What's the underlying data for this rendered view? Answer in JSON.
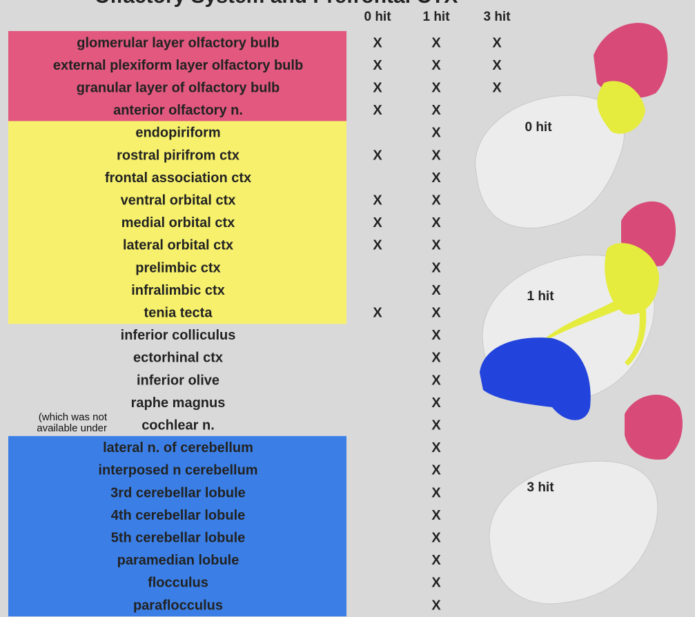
{
  "title": "Olfactory System and Prefrontal CTX",
  "columns": [
    "0 hit",
    "1 hit",
    "3 hit"
  ],
  "rows": [
    {
      "label": "glomerular layer olfactory bulb",
      "cells": [
        "X",
        "X",
        "X"
      ],
      "highlight": "#e2587f"
    },
    {
      "label": "external plexiform layer olfactory bulb",
      "cells": [
        "X",
        "X",
        "X"
      ],
      "highlight": "#e2587f"
    },
    {
      "label": "granular layer of olfactory bulb",
      "cells": [
        "X",
        "X",
        "X"
      ],
      "highlight": "#e2587f"
    },
    {
      "label": "anterior olfactory n.",
      "cells": [
        "X",
        "X",
        null
      ],
      "highlight": "#e2587f"
    },
    {
      "label": "endopiriform",
      "cells": [
        null,
        "X",
        null
      ],
      "highlight": "#f6f06c"
    },
    {
      "label": "rostral pirifrom ctx",
      "cells": [
        "X",
        "X",
        null
      ],
      "highlight": "#f6f06c"
    },
    {
      "label": "frontal association ctx",
      "cells": [
        null,
        "X",
        null
      ],
      "highlight": "#f6f06c"
    },
    {
      "label": "ventral orbital ctx",
      "cells": [
        "X",
        "X",
        null
      ],
      "highlight": "#f6f06c"
    },
    {
      "label": "medial orbital ctx",
      "cells": [
        "X",
        "X",
        null
      ],
      "highlight": "#f6f06c"
    },
    {
      "label": "lateral orbital ctx",
      "cells": [
        "X",
        "X",
        null
      ],
      "highlight": "#f6f06c"
    },
    {
      "label": "prelimbic ctx",
      "cells": [
        null,
        "X",
        null
      ],
      "highlight": "#f6f06c"
    },
    {
      "label": "infralimbic ctx",
      "cells": [
        null,
        "X",
        null
      ],
      "highlight": "#f6f06c"
    },
    {
      "label": "tenia tecta",
      "cells": [
        "X",
        "X",
        null
      ],
      "highlight": "#f6f06c"
    },
    {
      "label": "inferior colliculus",
      "cells": [
        null,
        "X",
        null
      ],
      "highlight": null
    },
    {
      "label": "ectorhinal ctx",
      "cells": [
        null,
        "X",
        null
      ],
      "highlight": null
    },
    {
      "label": "inferior olive",
      "cells": [
        null,
        "X",
        null
      ],
      "highlight": null
    },
    {
      "label": "raphe magnus",
      "cells": [
        null,
        "X",
        null
      ],
      "highlight": null
    },
    {
      "label": "cochlear n.",
      "cells": [
        null,
        "X",
        null
      ],
      "highlight": null
    },
    {
      "label": "lateral n. of cerebellum",
      "cells": [
        null,
        "X",
        null
      ],
      "highlight": "#3b7fe6"
    },
    {
      "label": "interposed n cerebellum",
      "cells": [
        null,
        "X",
        null
      ],
      "highlight": "#3b7fe6"
    },
    {
      "label": "3rd cerebellar lobule",
      "cells": [
        null,
        "X",
        null
      ],
      "highlight": "#3b7fe6"
    },
    {
      "label": "4th cerebellar lobule",
      "cells": [
        null,
        "X",
        null
      ],
      "highlight": "#3b7fe6"
    },
    {
      "label": "5th cerebellar lobule",
      "cells": [
        null,
        "X",
        null
      ],
      "highlight": "#3b7fe6"
    },
    {
      "label": "paramedian lobule",
      "cells": [
        null,
        "X",
        null
      ],
      "highlight": "#3b7fe6"
    },
    {
      "label": "flocculus",
      "cells": [
        null,
        "X",
        null
      ],
      "highlight": "#3b7fe6"
    },
    {
      "label": "paraflocculus",
      "cells": [
        null,
        "X",
        null
      ],
      "highlight": "#3b7fe6"
    }
  ],
  "image_labels": [
    "0 hit",
    "1 hit",
    "3 hit"
  ],
  "overlay_text": [
    "(which was not",
    "available under"
  ]
}
